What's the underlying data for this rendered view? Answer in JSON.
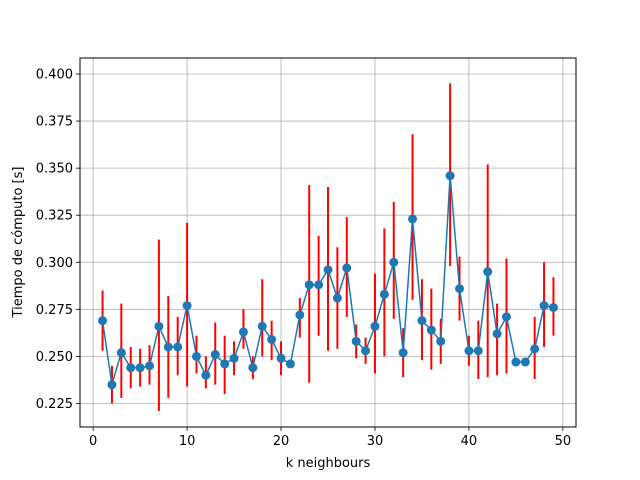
{
  "chart_data": {
    "type": "line",
    "title": "",
    "xlabel": "k neighbours",
    "ylabel": "Tiempo de cómputo [s]",
    "xlim": [
      -1.4,
      51.4
    ],
    "ylim": [
      0.2125,
      0.4085
    ],
    "grid": true,
    "legend": "none",
    "x_ticks": [
      0,
      10,
      20,
      30,
      40,
      50
    ],
    "x_tick_labels": [
      "0",
      "10",
      "20",
      "30",
      "40",
      "50"
    ],
    "y_ticks": [
      0.225,
      0.25,
      0.275,
      0.3,
      0.325,
      0.35,
      0.375,
      0.4
    ],
    "y_tick_labels": [
      "0.225",
      "0.250",
      "0.275",
      "0.300",
      "0.325",
      "0.350",
      "0.375",
      "0.400"
    ],
    "colors": {
      "line": "#1f77b4",
      "marker": "#1f77b4",
      "errorbar": "#ff0000",
      "grid": "#b0b0b0"
    },
    "series": [
      {
        "x": [
          1,
          2,
          3,
          4,
          5,
          6,
          7,
          8,
          9,
          10,
          11,
          12,
          13,
          14,
          15,
          16,
          17,
          18,
          19,
          20,
          21,
          22,
          23,
          24,
          25,
          26,
          27,
          28,
          29,
          30,
          31,
          32,
          33,
          34,
          35,
          36,
          37,
          38,
          39,
          40,
          41,
          42,
          43,
          44,
          45,
          46,
          47,
          48,
          49
        ],
        "y": [
          0.269,
          0.235,
          0.252,
          0.244,
          0.244,
          0.245,
          0.266,
          0.255,
          0.255,
          0.277,
          0.25,
          0.24,
          0.251,
          0.246,
          0.249,
          0.263,
          0.244,
          0.266,
          0.259,
          0.249,
          0.246,
          0.272,
          0.288,
          0.288,
          0.296,
          0.281,
          0.297,
          0.258,
          0.253,
          0.266,
          0.283,
          0.3,
          0.252,
          0.323,
          0.269,
          0.264,
          0.258,
          0.346,
          0.286,
          0.253,
          0.253,
          0.295,
          0.262,
          0.271,
          0.247,
          0.247,
          0.254,
          0.277,
          0.276
        ],
        "err_low": [
          0.253,
          0.225,
          0.228,
          0.233,
          0.234,
          0.235,
          0.221,
          0.228,
          0.24,
          0.234,
          0.241,
          0.233,
          0.235,
          0.23,
          0.24,
          0.254,
          0.238,
          0.25,
          0.248,
          0.24,
          0.244,
          0.26,
          0.236,
          0.261,
          0.253,
          0.254,
          0.271,
          0.249,
          0.246,
          0.241,
          0.25,
          0.27,
          0.239,
          0.28,
          0.248,
          0.243,
          0.246,
          0.298,
          0.269,
          0.245,
          0.238,
          0.239,
          0.24,
          0.241,
          0.246,
          0.246,
          0.238,
          0.255,
          0.261
        ],
        "err_high": [
          0.285,
          0.245,
          0.278,
          0.255,
          0.254,
          0.256,
          0.312,
          0.282,
          0.271,
          0.321,
          0.261,
          0.25,
          0.268,
          0.261,
          0.258,
          0.275,
          0.25,
          0.291,
          0.269,
          0.258,
          0.248,
          0.281,
          0.341,
          0.314,
          0.34,
          0.308,
          0.324,
          0.267,
          0.26,
          0.294,
          0.318,
          0.332,
          0.265,
          0.368,
          0.291,
          0.286,
          0.27,
          0.395,
          0.303,
          0.261,
          0.269,
          0.352,
          0.278,
          0.302,
          0.249,
          0.249,
          0.271,
          0.3,
          0.292
        ]
      }
    ]
  }
}
